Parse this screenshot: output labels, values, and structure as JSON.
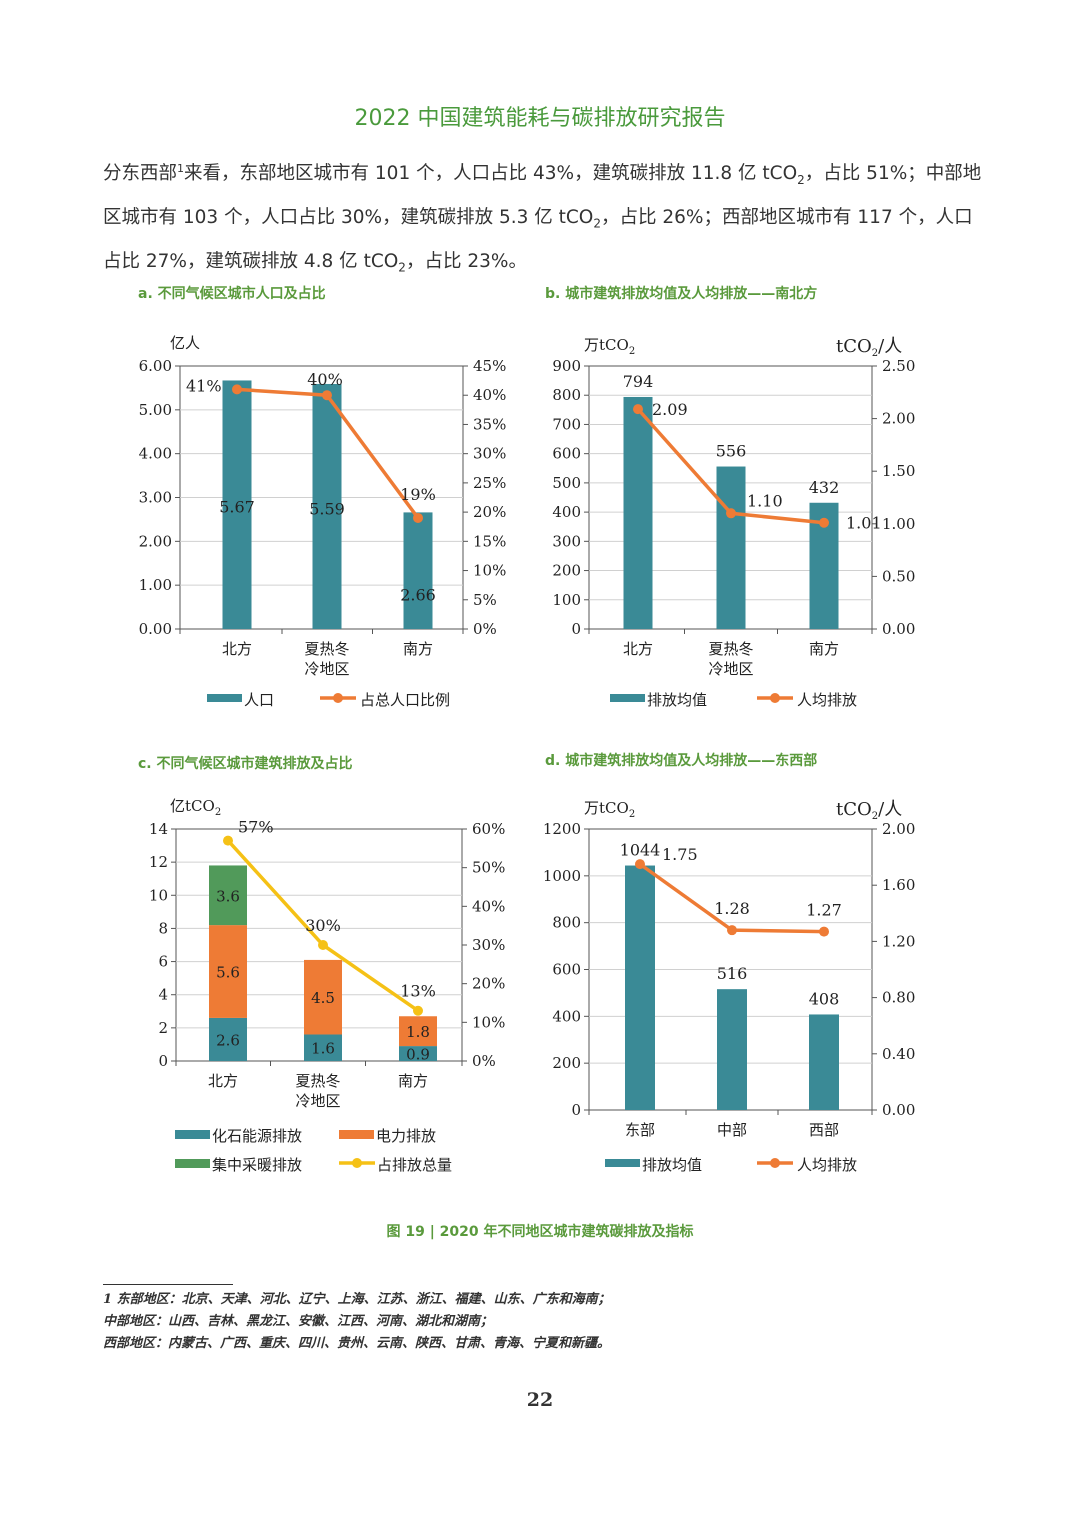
{
  "header": {
    "title": "2022 中国建筑能耗与碳排放研究报告"
  },
  "paragraph": {
    "p1": "分东西部",
    "fn_ref": "1",
    "p2": "来看，东部地区城市有 101 个，人口占比 43%，建筑碳排放 11.8 亿 tCO",
    "p3": "，占比 51%；中部地区城市有 103 个，人口占比 30%，建筑碳排放 5.3 亿 tCO",
    "p4": "，占比 26%；西部地区城市有 117 个，人口占比 27%，建筑碳排放 4.8 亿 tCO",
    "p5": "，占比 23%。",
    "sub": "2"
  },
  "colors": {
    "teal": "#3a8a96",
    "orange": "#ee7b35",
    "green": "#519a5a",
    "yellow": "#f5c116",
    "title_green": "#5a9a3c"
  },
  "figure": {
    "caption": "图 19 | 2020 年不同地区城市建筑碳排放及指标"
  },
  "footnotes": {
    "line1": "1 东部地区：北京、天津、河北、辽宁、上海、江苏、浙江、福建、山东、广东和海南；",
    "line2": "中部地区：山西、吉林、黑龙江、安徽、江西、河南、湖北和湖南；",
    "line3": "西部地区：内蒙古、广西、重庆、四川、贵州、云南、陕西、甘肃、青海、宁夏和新疆。"
  },
  "page_number": "22",
  "chart_data": [
    {
      "id": "a",
      "type": "bar",
      "title": "a. 不同气候区城市人口及占比",
      "ylabel": "亿人",
      "y2label": "",
      "categories": [
        "北方",
        "夏热冬冷地区",
        "南方"
      ],
      "category_lines": [
        [
          "北方"
        ],
        [
          "夏热冬",
          "冷地区"
        ],
        [
          "南方"
        ]
      ],
      "ylim": [
        0,
        6
      ],
      "yticks": [
        "0.00",
        "1.00",
        "2.00",
        "3.00",
        "4.00",
        "5.00",
        "6.00"
      ],
      "y2lim": [
        0,
        45
      ],
      "y2ticks": [
        "0%",
        "5%",
        "10%",
        "15%",
        "20%",
        "25%",
        "30%",
        "35%",
        "40%",
        "45%"
      ],
      "bars": {
        "name": "人口",
        "values": [
          5.67,
          5.59,
          2.66
        ],
        "labels": [
          "5.67",
          "5.59",
          "2.66"
        ]
      },
      "line": {
        "name": "占总人口比例",
        "values": [
          41,
          40,
          19
        ],
        "labels": [
          "41%",
          "40%",
          "19%"
        ]
      },
      "legend": [
        "人口",
        "占总人口比例"
      ]
    },
    {
      "id": "b",
      "type": "bar",
      "title": "b. 城市建筑排放均值及人均排放——南北方",
      "ylabel": "万tCO2",
      "y2label": "tCO2/人",
      "categories": [
        "北方",
        "夏热冬冷地区",
        "南方"
      ],
      "category_lines": [
        [
          "北方"
        ],
        [
          "夏热冬",
          "冷地区"
        ],
        [
          "南方"
        ]
      ],
      "ylim": [
        0,
        900
      ],
      "yticks": [
        "0",
        "100",
        "200",
        "300",
        "400",
        "500",
        "600",
        "700",
        "800",
        "900"
      ],
      "y2lim": [
        0,
        2.5
      ],
      "y2ticks": [
        "0.00",
        "0.50",
        "1.00",
        "1.50",
        "2.00",
        "2.50"
      ],
      "bars": {
        "name": "排放均值",
        "values": [
          794,
          556,
          432
        ],
        "labels": [
          "794",
          "556",
          "432"
        ]
      },
      "line": {
        "name": "人均排放",
        "values": [
          2.09,
          1.1,
          1.01
        ],
        "labels": [
          "2.09",
          "1.10",
          "1.01"
        ]
      },
      "legend": [
        "排放均值",
        "人均排放"
      ]
    },
    {
      "id": "c",
      "type": "bar",
      "stacked": true,
      "title": "c. 不同气候区城市建筑排放及占比",
      "ylabel": "亿tCO2",
      "y2label": "",
      "categories": [
        "北方",
        "夏热冬冷地区",
        "南方"
      ],
      "category_lines": [
        [
          "北方"
        ],
        [
          "夏热冬",
          "冷地区"
        ],
        [
          "南方"
        ]
      ],
      "ylim": [
        0,
        14
      ],
      "yticks": [
        "0",
        "2",
        "4",
        "6",
        "8",
        "10",
        "12",
        "14"
      ],
      "y2lim": [
        0,
        60
      ],
      "y2ticks": [
        "0%",
        "10%",
        "20%",
        "30%",
        "40%",
        "50%",
        "60%"
      ],
      "series": [
        {
          "name": "化石能源排放",
          "values": [
            2.6,
            1.6,
            0.9
          ],
          "labels": [
            "2.6",
            "1.6",
            "0.9"
          ]
        },
        {
          "name": "电力排放",
          "values": [
            5.6,
            4.5,
            1.8
          ],
          "labels": [
            "5.6",
            "4.5",
            "1.8"
          ]
        },
        {
          "name": "集中采暖排放",
          "values": [
            3.6,
            0,
            0
          ],
          "labels": [
            "3.6",
            "",
            ""
          ]
        }
      ],
      "line": {
        "name": "占排放总量",
        "values": [
          57,
          30,
          13
        ],
        "labels": [
          "57%",
          "30%",
          "13%"
        ]
      },
      "legend": [
        "化石能源排放",
        "电力排放",
        "集中采暖排放",
        "占排放总量"
      ]
    },
    {
      "id": "d",
      "type": "bar",
      "title": "d. 城市建筑排放均值及人均排放——东西部",
      "ylabel": "万tCO2",
      "y2label": "tCO2/人",
      "categories": [
        "东部",
        "中部",
        "西部"
      ],
      "category_lines": [
        [
          "东部"
        ],
        [
          "中部"
        ],
        [
          "西部"
        ]
      ],
      "ylim": [
        0,
        1200
      ],
      "yticks": [
        "0",
        "200",
        "400",
        "600",
        "800",
        "1000",
        "1200"
      ],
      "y2lim": [
        0,
        2.0
      ],
      "y2ticks": [
        "0.00",
        "0.40",
        "0.80",
        "1.20",
        "1.60",
        "2.00"
      ],
      "bars": {
        "name": "排放均值",
        "values": [
          1044,
          516,
          408
        ],
        "labels": [
          "1044",
          "516",
          "408"
        ]
      },
      "line": {
        "name": "人均排放",
        "values": [
          1.75,
          1.28,
          1.27
        ],
        "labels": [
          "1.75",
          "1.28",
          "1.27"
        ]
      },
      "legend": [
        "排放均值",
        "人均排放"
      ]
    }
  ]
}
